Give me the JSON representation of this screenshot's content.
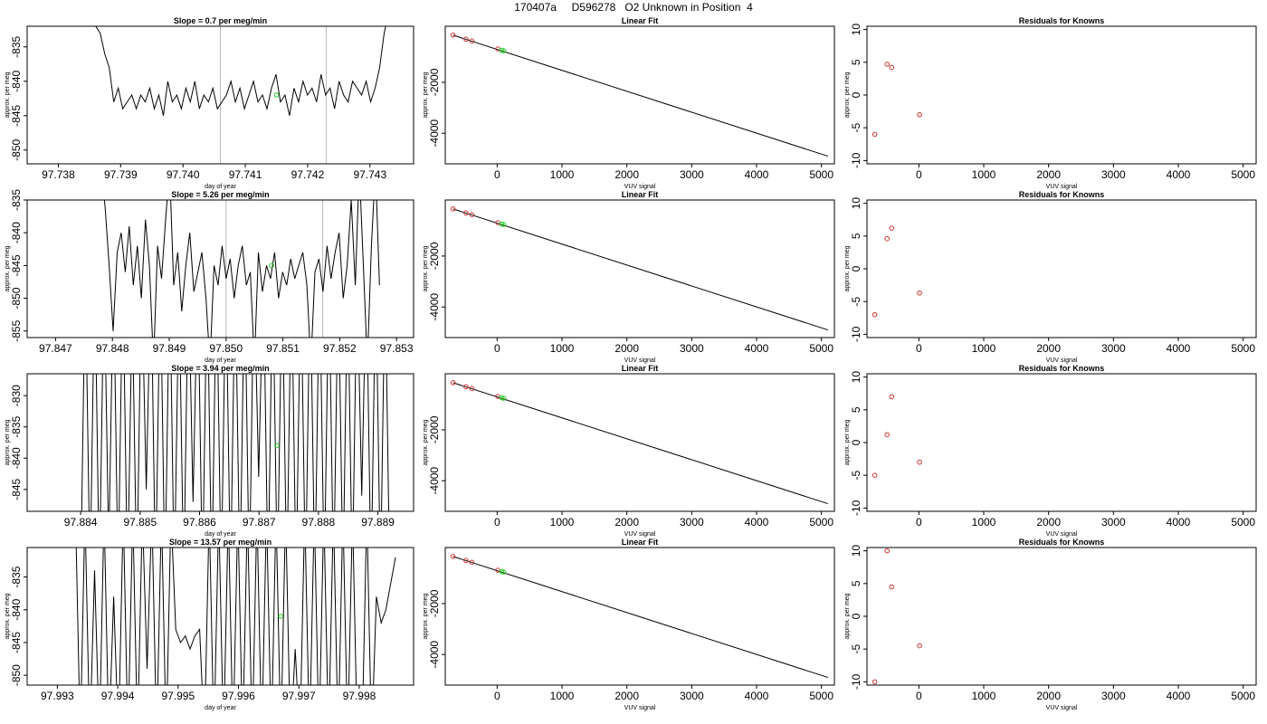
{
  "page_title": "170407a     D596278   O2 Unknown in Position  4",
  "chart_data": [
    {
      "type": "line",
      "row": 1,
      "panel": "timeseries",
      "title": "Slope =  0.7  per meg/min",
      "xlabel": "day of year",
      "ylabel": "approx. per meg",
      "xlim": [
        97.7375,
        97.7437
      ],
      "ylim": [
        -852,
        -832
      ],
      "xticks": [
        "97.738",
        "97.739",
        "97.740",
        "97.741",
        "97.742",
        "97.743"
      ],
      "yticks": [
        "-835",
        "-840",
        "-845",
        "-850"
      ],
      "series": [
        {
          "x_start": 97.7386,
          "x_end": 97.7433,
          "values": [
            -832,
            -833,
            -836,
            -838,
            -843,
            -841,
            -844,
            -843,
            -842,
            -844,
            -842,
            -843,
            -841,
            -844,
            -842,
            -845,
            -840,
            -843,
            -842,
            -844,
            -841,
            -843,
            -840,
            -844,
            -842,
            -843,
            -841,
            -844,
            -843,
            -842,
            -840,
            -843,
            -841,
            -844,
            -842,
            -840,
            -843,
            -842,
            -844,
            -841,
            -839,
            -843,
            -842,
            -845,
            -841,
            -843,
            -840,
            -842,
            -841,
            -843,
            -839,
            -842,
            -841,
            -844,
            -840,
            -842,
            -843,
            -840,
            -841,
            -842,
            -840,
            -843,
            -841,
            -838,
            -833,
            -830
          ]
        }
      ],
      "vlines": [
        97.7406,
        97.7423
      ],
      "green_point": {
        "x": 97.7415,
        "y": -842
      }
    },
    {
      "type": "scatter",
      "row": 1,
      "panel": "fit",
      "title": "Linear Fit",
      "xlabel": "VUV signal",
      "ylabel": "approx. per meg",
      "xlim": [
        -800,
        5200
      ],
      "ylim": [
        -5200,
        200
      ],
      "xticks": [
        "0",
        "1000",
        "2000",
        "3000",
        "4000",
        "5000"
      ],
      "yticks": [
        "-2000",
        "-4000"
      ],
      "fit_line": [
        [
          -680,
          -150
        ],
        [
          5100,
          -4900
        ]
      ],
      "points": [
        [
          -680,
          -150
        ],
        [
          -480,
          -310
        ],
        [
          -390,
          -380
        ],
        [
          10,
          -690
        ]
      ],
      "green": [
        [
          70,
          -740
        ],
        [
          100,
          -760
        ]
      ]
    },
    {
      "type": "scatter",
      "row": 1,
      "panel": "residuals",
      "title": "Residuals for Knowns",
      "xlabel": "VUV signal",
      "ylabel": "approx. per meg",
      "xlim": [
        -800,
        5200
      ],
      "ylim": [
        -10.5,
        10.5
      ],
      "xticks": [
        "0",
        "1000",
        "2000",
        "3000",
        "4000",
        "5000"
      ],
      "yticks": [
        "10",
        "5",
        "0",
        "-5",
        "-10"
      ],
      "points": [
        [
          -680,
          -6
        ],
        [
          -490,
          4.7
        ],
        [
          -420,
          4.2
        ],
        [
          10,
          -3
        ]
      ]
    },
    {
      "type": "line",
      "row": 2,
      "panel": "timeseries",
      "title": "Slope =  5.26  per meg/min",
      "xlabel": "day of year",
      "ylabel": "approx. per meg",
      "xlim": [
        97.8465,
        97.8533
      ],
      "ylim": [
        -856,
        -835
      ],
      "xticks": [
        "97.847",
        "97.848",
        "97.849",
        "97.850",
        "97.851",
        "97.852",
        "97.853"
      ],
      "yticks": [
        "-835",
        "-840",
        "-845",
        "-850",
        "-855"
      ],
      "series": [
        {
          "x_start": 97.8478,
          "x_end": 97.8527,
          "values": [
            -830,
            -836,
            -845,
            -855,
            -843,
            -840,
            -846,
            -839,
            -848,
            -842,
            -850,
            -838,
            -845,
            -860,
            -842,
            -847,
            -838,
            -830,
            -848,
            -843,
            -852,
            -845,
            -840,
            -849,
            -846,
            -843,
            -850,
            -860,
            -845,
            -848,
            -842,
            -847,
            -844,
            -850,
            -845,
            -842,
            -848,
            -846,
            -860,
            -843,
            -849,
            -845,
            -847,
            -843,
            -850,
            -846,
            -848,
            -844,
            -847,
            -845,
            -843,
            -848,
            -860,
            -846,
            -844,
            -849,
            -842,
            -847,
            -843,
            -840,
            -850,
            -845,
            -835,
            -848,
            -830,
            -845,
            -860,
            -842,
            -830,
            -848
          ]
        }
      ],
      "vlines": [
        97.85,
        97.8517
      ],
      "green_point": {
        "x": 97.8508,
        "y": -845
      }
    },
    {
      "type": "scatter",
      "row": 2,
      "panel": "fit",
      "title": "Linear Fit",
      "xlabel": "VUV signal",
      "ylabel": "approx. per meg",
      "xlim": [
        -800,
        5200
      ],
      "ylim": [
        -5200,
        200
      ],
      "xticks": [
        "0",
        "1000",
        "2000",
        "3000",
        "4000",
        "5000"
      ],
      "yticks": [
        "-2000",
        "-4000"
      ],
      "fit_line": [
        [
          -680,
          -150
        ],
        [
          5100,
          -4900
        ]
      ],
      "points": [
        [
          -680,
          -150
        ],
        [
          -480,
          -310
        ],
        [
          -390,
          -380
        ],
        [
          10,
          -690
        ]
      ],
      "green": [
        [
          70,
          -740
        ],
        [
          100,
          -760
        ]
      ]
    },
    {
      "type": "scatter",
      "row": 2,
      "panel": "residuals",
      "title": "Residuals for Knowns",
      "xlabel": "VUV signal",
      "ylabel": "approx. per meg",
      "xlim": [
        -800,
        5200
      ],
      "ylim": [
        -10.5,
        10.5
      ],
      "xticks": [
        "0",
        "1000",
        "2000",
        "3000",
        "4000",
        "5000"
      ],
      "yticks": [
        "10",
        "5",
        "0",
        "-5",
        "-10"
      ],
      "points": [
        [
          -680,
          -7
        ],
        [
          -490,
          4.6
        ],
        [
          -420,
          6.2
        ],
        [
          10,
          -3.7
        ]
      ]
    },
    {
      "type": "line",
      "row": 3,
      "panel": "timeseries",
      "title": "Slope =  3.94  per meg/min",
      "xlabel": "day of year",
      "ylabel": "approx. per meg",
      "xlim": [
        97.8831,
        97.8896
      ],
      "ylim": [
        -848.5,
        -826.5
      ],
      "xticks": [
        "97.884",
        "97.885",
        "97.886",
        "97.887",
        "97.888",
        "97.889"
      ],
      "yticks": [
        "-830",
        "-835",
        "-840",
        "-845"
      ],
      "series": [
        {
          "x_start": 97.884,
          "x_end": 97.8892,
          "values": [
            -860,
            -810,
            -860,
            -810,
            -860,
            -810,
            -855,
            -810,
            -860,
            -810,
            -860,
            -815,
            -860,
            -810,
            -845,
            -810,
            -860,
            -810,
            -860,
            -810,
            -860,
            -812,
            -860,
            -810,
            -847,
            -810,
            -860,
            -810,
            -860,
            -810,
            -860,
            -810,
            -860,
            -810,
            -860,
            -810,
            -860,
            -810,
            -843,
            -810,
            -860,
            -810,
            -860,
            -810,
            -860,
            -810,
            -860,
            -810,
            -860,
            -810,
            -860,
            -810,
            -860,
            -810,
            -860,
            -810,
            -860,
            -810,
            -860,
            -810,
            -846,
            -810,
            -860,
            -810,
            -860,
            -810,
            -860
          ]
        }
      ],
      "vlines": [],
      "green_point": {
        "x": 97.8873,
        "y": -838
      }
    },
    {
      "type": "scatter",
      "row": 3,
      "panel": "fit",
      "title": "Linear Fit",
      "xlabel": "VUV signal",
      "ylabel": "approx. per meg",
      "xlim": [
        -800,
        5200
      ],
      "ylim": [
        -5200,
        200
      ],
      "xticks": [
        "0",
        "1000",
        "2000",
        "3000",
        "4000",
        "5000"
      ],
      "yticks": [
        "-2000",
        "-4000"
      ],
      "fit_line": [
        [
          -680,
          -150
        ],
        [
          5100,
          -4900
        ]
      ],
      "points": [
        [
          -680,
          -150
        ],
        [
          -480,
          -310
        ],
        [
          -390,
          -380
        ],
        [
          10,
          -690
        ]
      ],
      "green": [
        [
          70,
          -740
        ],
        [
          100,
          -760
        ]
      ]
    },
    {
      "type": "scatter",
      "row": 3,
      "panel": "residuals",
      "title": "Residuals for Knowns",
      "xlabel": "VUV signal",
      "ylabel": "approx. per meg",
      "xlim": [
        -800,
        5200
      ],
      "ylim": [
        -10.5,
        10.5
      ],
      "xticks": [
        "0",
        "1000",
        "2000",
        "3000",
        "4000",
        "5000"
      ],
      "yticks": [
        "10",
        "5",
        "0",
        "-5",
        "-10"
      ],
      "points": [
        [
          -680,
          -5
        ],
        [
          -490,
          1.2
        ],
        [
          -420,
          7
        ],
        [
          10,
          -3
        ]
      ]
    },
    {
      "type": "line",
      "row": 4,
      "panel": "timeseries",
      "title": "Slope =  13.57  per meg/min",
      "xlabel": "day of year",
      "ylabel": "approx. per meg",
      "xlim": [
        97.9925,
        97.9989
      ],
      "ylim": [
        -851.5,
        -830.5
      ],
      "xticks": [
        "97.993",
        "97.994",
        "97.995",
        "97.996",
        "97.997",
        "97.998"
      ],
      "yticks": [
        "-835",
        "-840",
        "-845",
        "-850"
      ],
      "series": [
        {
          "x_start": 97.9933,
          "x_end": 97.9986,
          "values": [
            -825,
            -860,
            -825,
            -860,
            -834,
            -860,
            -825,
            -860,
            -838,
            -860,
            -825,
            -860,
            -825,
            -860,
            -825,
            -849,
            -825,
            -860,
            -825,
            -860,
            -825,
            -843,
            -845,
            -844,
            -846,
            -844,
            -843,
            -860,
            -825,
            -860,
            -825,
            -860,
            -825,
            -860,
            -825,
            -860,
            -825,
            -860,
            -825,
            -860,
            -825,
            -860,
            -825,
            -860,
            -825,
            -860,
            -846,
            -860,
            -825,
            -860,
            -825,
            -860,
            -825,
            -860,
            -825,
            -860,
            -825,
            -860,
            -825,
            -860,
            -860,
            -825,
            -860,
            -838,
            -842,
            -840,
            -836,
            -832
          ]
        }
      ],
      "vlines": [],
      "green_point": {
        "x": 97.9967,
        "y": -841
      }
    },
    {
      "type": "scatter",
      "row": 4,
      "panel": "fit",
      "title": "Linear Fit",
      "xlabel": "VUV signal",
      "ylabel": "approx. per meg",
      "xlim": [
        -800,
        5200
      ],
      "ylim": [
        -5200,
        200
      ],
      "xticks": [
        "0",
        "1000",
        "2000",
        "3000",
        "4000",
        "5000"
      ],
      "yticks": [
        "-2000",
        "-4000"
      ],
      "fit_line": [
        [
          -680,
          -150
        ],
        [
          5100,
          -4900
        ]
      ],
      "points": [
        [
          -680,
          -150
        ],
        [
          -480,
          -310
        ],
        [
          -390,
          -380
        ],
        [
          10,
          -690
        ]
      ],
      "green": [
        [
          70,
          -740
        ],
        [
          100,
          -760
        ]
      ]
    },
    {
      "type": "scatter",
      "row": 4,
      "panel": "residuals",
      "title": "Residuals for Knowns",
      "xlabel": "VUV signal",
      "ylabel": "approx. per meg",
      "xlim": [
        -800,
        5200
      ],
      "ylim": [
        -10.5,
        10.5
      ],
      "xticks": [
        "0",
        "1000",
        "2000",
        "3000",
        "4000",
        "5000"
      ],
      "yticks": [
        "10",
        "5",
        "0",
        "-5",
        "-10"
      ],
      "points": [
        [
          -680,
          -10
        ],
        [
          -490,
          10
        ],
        [
          -420,
          4.5
        ],
        [
          10,
          -4.5
        ]
      ]
    }
  ],
  "colors": {
    "line": "#000000",
    "known_points": "#cc3333",
    "unknown_points": "#22cc22",
    "vlines": "#bbbbbb"
  }
}
